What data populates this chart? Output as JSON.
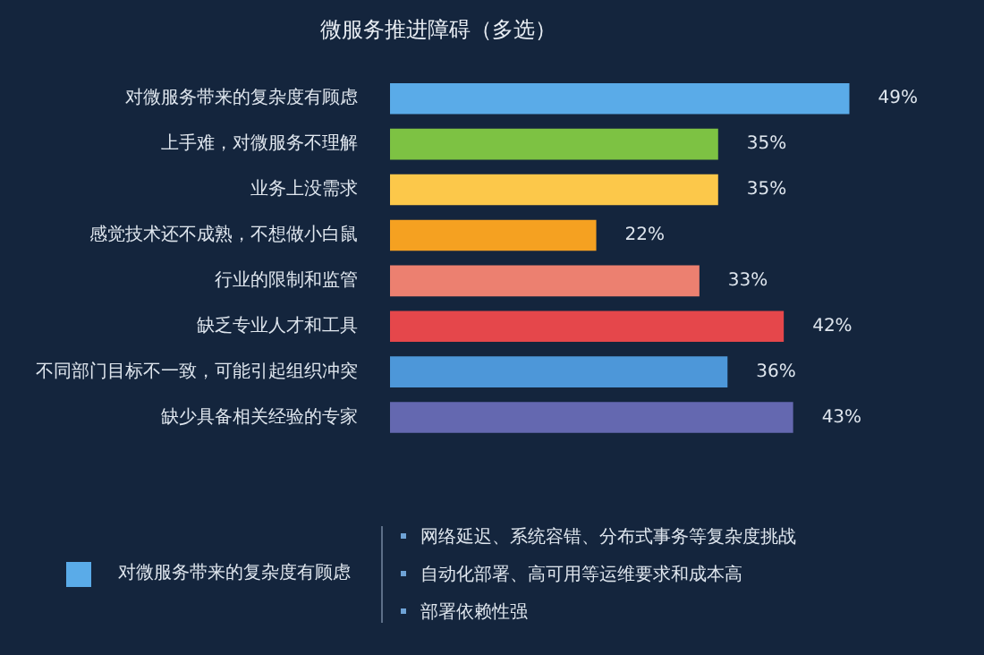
{
  "chart_data": {
    "type": "bar",
    "orientation": "horizontal",
    "title": "微服务推进障碍（多选）",
    "categories": [
      "对微服务带来的复杂度有顾虑",
      "上手难，对微服务不理解",
      "业务上没需求",
      "感觉技术还不成熟，不想做小白鼠",
      "行业的限制和监管",
      "缺乏专业人才和工具",
      "不同部门目标不一致，可能引起组织冲突",
      "缺少具备相关经验的专家"
    ],
    "values": [
      49,
      35,
      35,
      22,
      33,
      42,
      36,
      43
    ],
    "colors": [
      "#5aabe8",
      "#7dc243",
      "#fcc84a",
      "#f5a121",
      "#ec8070",
      "#e5474b",
      "#4d97d9",
      "#6468b0"
    ],
    "value_labels": [
      "49%",
      "35%",
      "35%",
      "22%",
      "33%",
      "42%",
      "36%",
      "43%"
    ],
    "legend": false,
    "annotations": [
      "对微服务带来的复杂度有顾虑",
      "网络延迟、系统容错、分布式事务等复杂度挑战",
      "自动化部署、高可用等运维要求和成本高",
      "部署依赖性强"
    ]
  }
}
